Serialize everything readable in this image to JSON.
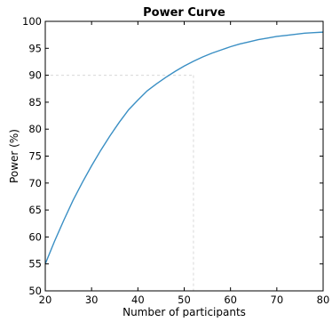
{
  "chart_data": {
    "type": "line",
    "title": "Power Curve",
    "xlabel": "Number of participants",
    "ylabel": "Power (%)",
    "xlim": [
      20,
      80
    ],
    "ylim": [
      50,
      100
    ],
    "xticks": [
      20,
      30,
      40,
      50,
      60,
      70,
      80
    ],
    "yticks": [
      50,
      55,
      60,
      65,
      70,
      75,
      80,
      85,
      90,
      95,
      100
    ],
    "grid": false,
    "legend": "none",
    "line_color": "#3a8fc4",
    "reference_color": "#d8d8d8",
    "reference_point": {
      "x": 52,
      "y": 90
    },
    "series": [
      {
        "x": [
          20,
          22,
          24,
          26,
          28,
          30,
          32,
          34,
          36,
          38,
          40,
          42,
          44,
          46,
          48,
          50,
          52,
          54,
          56,
          58,
          60,
          62,
          64,
          66,
          68,
          70,
          72,
          74,
          76,
          78,
          80
        ],
        "values": [
          55.0,
          59.2,
          63.1,
          66.8,
          70.1,
          73.2,
          76.1,
          78.8,
          81.3,
          83.6,
          85.4,
          87.1,
          88.4,
          89.6,
          90.7,
          91.7,
          92.6,
          93.4,
          94.1,
          94.7,
          95.3,
          95.8,
          96.2,
          96.6,
          96.9,
          97.2,
          97.4,
          97.6,
          97.8,
          97.9,
          98.0
        ]
      }
    ]
  }
}
